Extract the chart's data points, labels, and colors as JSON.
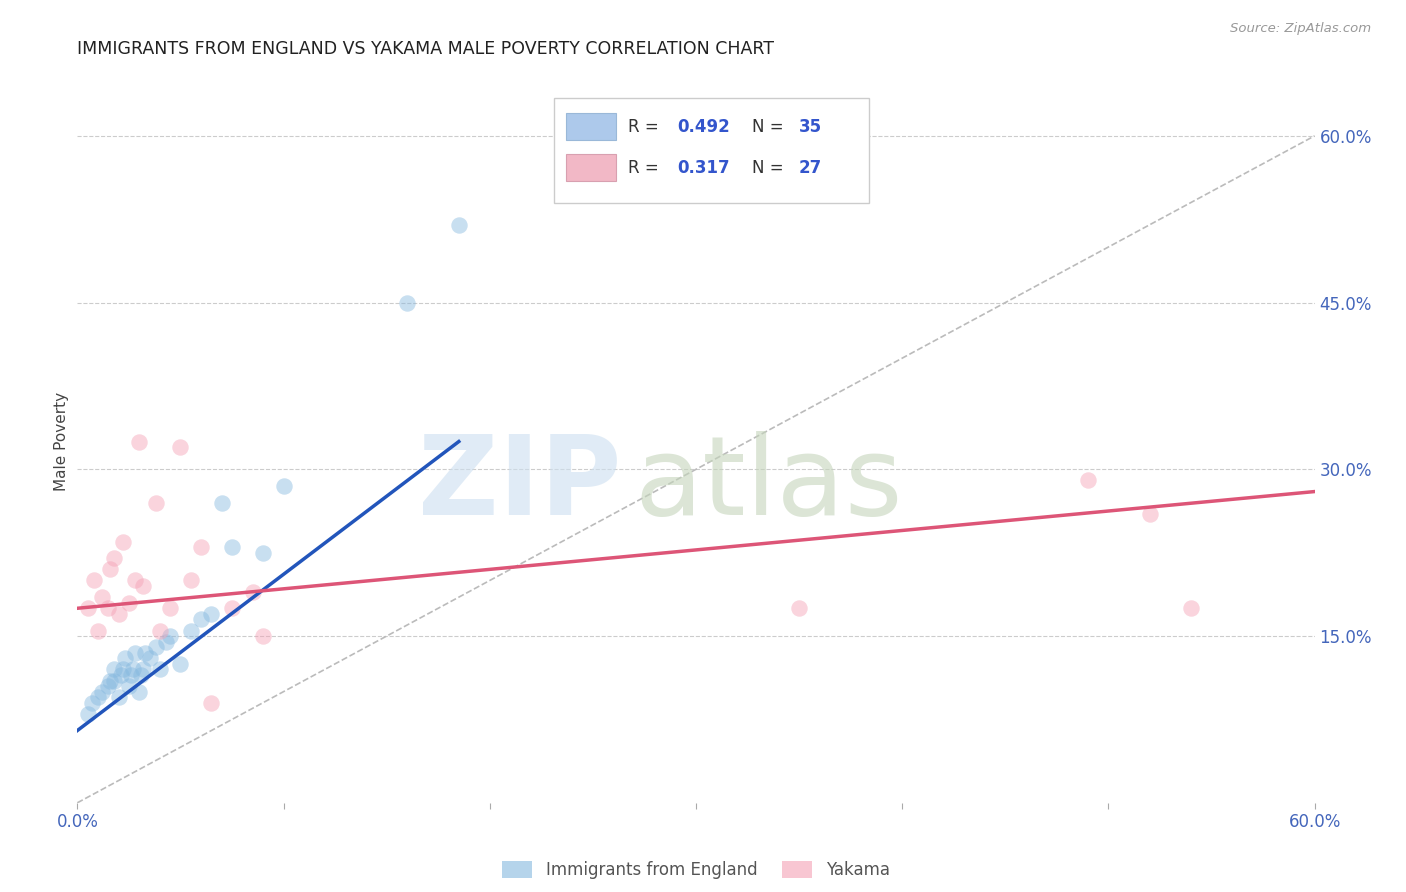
{
  "title": "IMMIGRANTS FROM ENGLAND VS YAKAMA MALE POVERTY CORRELATION CHART",
  "source": "Source: ZipAtlas.com",
  "ylabel": "Male Poverty",
  "xlim": [
    0.0,
    0.6
  ],
  "ylim": [
    0.0,
    0.65
  ],
  "right_yticks": [
    0.15,
    0.3,
    0.45,
    0.6
  ],
  "right_yticklabels": [
    "15.0%",
    "30.0%",
    "45.0%",
    "60.0%"
  ],
  "grid_color": "#cccccc",
  "background_color": "#ffffff",
  "title_color": "#222222",
  "title_fontsize": 12.5,
  "axis_label_color": "#444444",
  "tick_color": "#4466bb",
  "legend_color1": "#adc9eb",
  "legend_color2": "#f2b8c6",
  "legend_text_color": "#3355cc",
  "blue_scatter_x": [
    0.005,
    0.007,
    0.01,
    0.012,
    0.015,
    0.016,
    0.018,
    0.018,
    0.02,
    0.021,
    0.022,
    0.023,
    0.025,
    0.026,
    0.027,
    0.028,
    0.03,
    0.031,
    0.032,
    0.033,
    0.035,
    0.038,
    0.04,
    0.043,
    0.045,
    0.05,
    0.055,
    0.06,
    0.065,
    0.07,
    0.075,
    0.09,
    0.1,
    0.16,
    0.185
  ],
  "blue_scatter_y": [
    0.08,
    0.09,
    0.095,
    0.1,
    0.105,
    0.11,
    0.11,
    0.12,
    0.095,
    0.115,
    0.12,
    0.13,
    0.105,
    0.115,
    0.12,
    0.135,
    0.1,
    0.115,
    0.12,
    0.135,
    0.13,
    0.14,
    0.12,
    0.145,
    0.15,
    0.125,
    0.155,
    0.165,
    0.17,
    0.27,
    0.23,
    0.225,
    0.285,
    0.45,
    0.52
  ],
  "pink_scatter_x": [
    0.005,
    0.008,
    0.01,
    0.012,
    0.015,
    0.016,
    0.018,
    0.02,
    0.022,
    0.025,
    0.028,
    0.03,
    0.032,
    0.038,
    0.04,
    0.045,
    0.05,
    0.055,
    0.06,
    0.065,
    0.075,
    0.085,
    0.09,
    0.35,
    0.49,
    0.52,
    0.54
  ],
  "pink_scatter_y": [
    0.175,
    0.2,
    0.155,
    0.185,
    0.175,
    0.21,
    0.22,
    0.17,
    0.235,
    0.18,
    0.2,
    0.325,
    0.195,
    0.27,
    0.155,
    0.175,
    0.32,
    0.2,
    0.23,
    0.09,
    0.175,
    0.19,
    0.15,
    0.175,
    0.29,
    0.26,
    0.175
  ],
  "blue_line_x": [
    0.0,
    0.185
  ],
  "blue_line_y": [
    0.065,
    0.325
  ],
  "pink_line_x": [
    0.0,
    0.6
  ],
  "pink_line_y": [
    0.175,
    0.28
  ],
  "diag_line_x": [
    0.0,
    0.6
  ],
  "diag_line_y": [
    0.0,
    0.6
  ],
  "blue_scatter_color": "#85b8df",
  "pink_scatter_color": "#f4a0b5",
  "blue_line_color": "#2255bb",
  "pink_line_color": "#dd5577",
  "diag_line_color": "#bbbbbb",
  "legend_label1": "Immigrants from England",
  "legend_label2": "Yakama"
}
